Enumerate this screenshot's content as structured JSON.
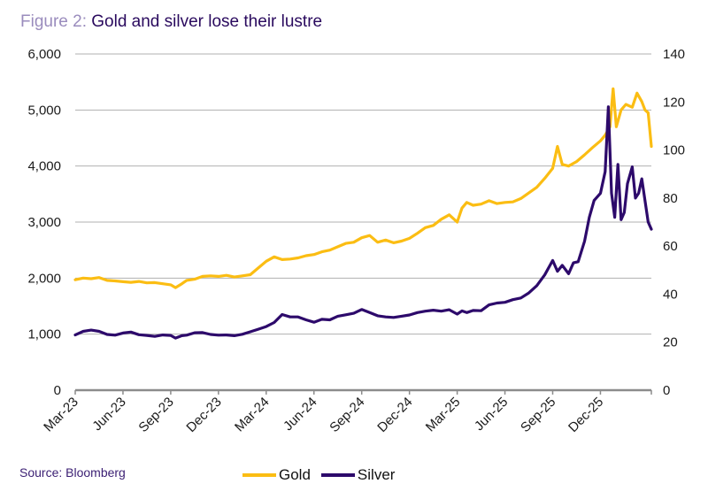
{
  "title": {
    "prefix": "Figure 2:",
    "text": "Gold and silver lose their lustre"
  },
  "source": "Source: Bloomberg",
  "colors": {
    "gold": "#fbbd13",
    "silver": "#2d0a6b",
    "grid": "#b0b0b0",
    "axis": "#8c8c8c"
  },
  "chart_data": {
    "type": "line",
    "title": "Gold and silver lose their lustre",
    "xlabel": "",
    "ylabel": "",
    "grid": true,
    "legend_position": "bottom-center",
    "x_tick_labels": [
      "Mar-23",
      "Jun-23",
      "Sep-23",
      "Dec-23",
      "Mar-24",
      "Jun-24",
      "Sep-24",
      "Dec-24",
      "Mar-25",
      "Jun-25",
      "Sep-25",
      "Dec-25"
    ],
    "x_unit": "months since Mar-23",
    "xlim": [
      0,
      36.2
    ],
    "y_left": {
      "ticks": [
        "0",
        "1,000",
        "2,000",
        "3,000",
        "4,000",
        "5,000",
        "6,000"
      ],
      "ylim": [
        0,
        6000
      ],
      "series": "Gold"
    },
    "y_right": {
      "ticks": [
        "0",
        "20",
        "40",
        "60",
        "80",
        "100",
        "120",
        "140"
      ],
      "ylim": [
        0,
        140
      ],
      "series": "Silver"
    },
    "series": [
      {
        "name": "Gold",
        "axis": "left",
        "x": [
          0,
          0.5,
          1,
          1.5,
          2,
          2.5,
          3,
          3.5,
          4,
          4.5,
          5,
          5.5,
          6,
          6.3,
          6.7,
          7,
          7.5,
          8,
          8.5,
          9,
          9.5,
          10,
          10.5,
          11,
          11.5,
          12,
          12.5,
          13,
          13.5,
          14,
          14.5,
          15,
          15.5,
          16,
          16.5,
          17,
          17.5,
          18,
          18.5,
          19,
          19.5,
          20,
          20.5,
          21,
          21.5,
          22,
          22.5,
          23,
          23.5,
          24,
          24.3,
          24.6,
          25,
          25.5,
          26,
          26.5,
          27,
          27.5,
          28,
          28.5,
          29,
          29.5,
          30,
          30.3,
          30.6,
          31,
          31.5,
          32,
          32.5,
          33,
          33.3,
          33.6,
          33.8,
          34,
          34.3,
          34.6,
          35,
          35.3,
          35.6,
          35.8,
          36,
          36.2
        ],
        "values": [
          1970,
          2000,
          1990,
          2010,
          1960,
          1950,
          1935,
          1925,
          1940,
          1915,
          1920,
          1900,
          1880,
          1830,
          1900,
          1960,
          1980,
          2030,
          2040,
          2030,
          2050,
          2020,
          2040,
          2060,
          2180,
          2300,
          2380,
          2330,
          2340,
          2360,
          2400,
          2420,
          2470,
          2500,
          2560,
          2620,
          2640,
          2720,
          2760,
          2640,
          2680,
          2630,
          2660,
          2710,
          2800,
          2900,
          2940,
          3050,
          3130,
          3000,
          3250,
          3350,
          3300,
          3320,
          3380,
          3330,
          3350,
          3360,
          3420,
          3520,
          3620,
          3780,
          3960,
          4350,
          4030,
          4000,
          4080,
          4200,
          4330,
          4450,
          4550,
          4700,
          5380,
          4700,
          5000,
          5100,
          5050,
          5300,
          5150,
          5000,
          4950,
          4350
        ]
      },
      {
        "name": "Silver",
        "axis": "right",
        "x": [
          0,
          0.5,
          1,
          1.5,
          2,
          2.5,
          3,
          3.5,
          4,
          4.5,
          5,
          5.5,
          6,
          6.3,
          6.7,
          7,
          7.5,
          8,
          8.5,
          9,
          9.5,
          10,
          10.5,
          11,
          11.5,
          12,
          12.5,
          13,
          13.5,
          14,
          14.5,
          15,
          15.5,
          16,
          16.5,
          17,
          17.5,
          18,
          18.5,
          19,
          19.5,
          20,
          20.5,
          21,
          21.5,
          22,
          22.5,
          23,
          23.5,
          24,
          24.3,
          24.6,
          25,
          25.5,
          26,
          26.5,
          27,
          27.5,
          28,
          28.5,
          29,
          29.5,
          30,
          30.3,
          30.6,
          31,
          31.3,
          31.6,
          32,
          32.3,
          32.6,
          33,
          33.3,
          33.5,
          33.7,
          33.9,
          34.1,
          34.3,
          34.5,
          34.7,
          35,
          35.2,
          35.4,
          35.6,
          35.8,
          36,
          36.2
        ],
        "values": [
          23.0,
          24.5,
          25.0,
          24.5,
          23.2,
          22.9,
          23.8,
          24.2,
          23.1,
          22.8,
          22.4,
          23.0,
          22.8,
          21.7,
          22.7,
          22.9,
          23.9,
          24.0,
          23.2,
          22.9,
          23.0,
          22.7,
          23.3,
          24.3,
          25.4,
          26.5,
          28.2,
          31.5,
          30.5,
          30.5,
          29.3,
          28.3,
          29.5,
          29.3,
          30.8,
          31.4,
          32.0,
          33.6,
          32.3,
          31.0,
          30.5,
          30.3,
          30.8,
          31.3,
          32.3,
          32.9,
          33.3,
          32.9,
          33.5,
          31.7,
          33.0,
          32.3,
          33.2,
          33.1,
          35.5,
          36.3,
          36.6,
          37.7,
          38.4,
          40.5,
          43.5,
          48.0,
          54.0,
          49.5,
          52.0,
          48.5,
          53.0,
          53.5,
          62.0,
          72.0,
          79.0,
          82.0,
          91.0,
          118.0,
          82.0,
          72.0,
          94.0,
          71.0,
          74.0,
          86.0,
          93.0,
          80.0,
          82.0,
          88.0,
          79.0,
          70.0,
          67.0
        ]
      }
    ]
  }
}
